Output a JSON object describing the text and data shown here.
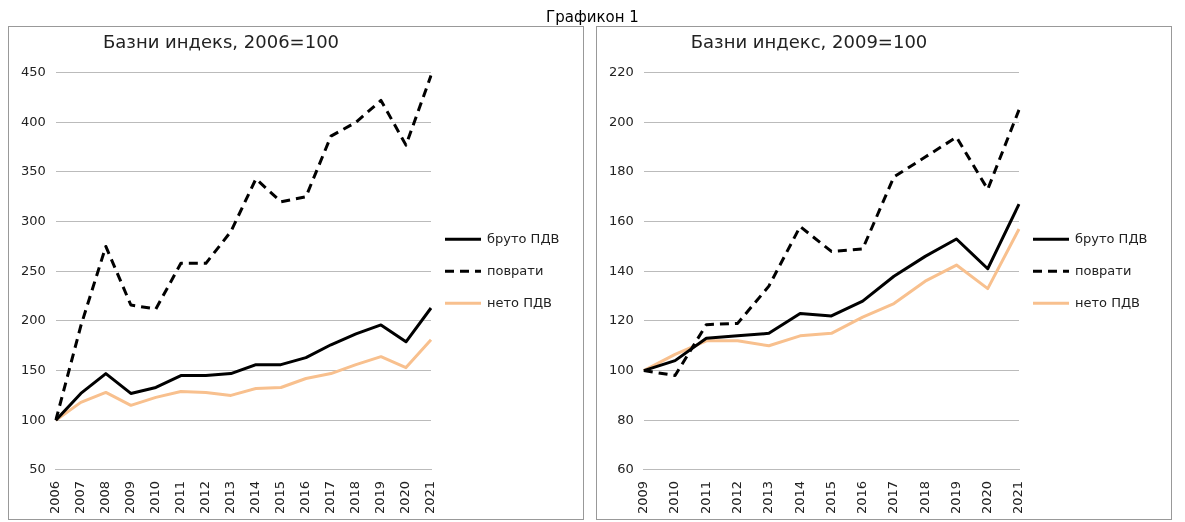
{
  "chart_data": [
    {
      "type": "line",
      "title": "Базни индекs, 2006=100",
      "annotations": [
        "Графикон 1"
      ],
      "categories": [
        "2006",
        "2007",
        "2008",
        "2009",
        "2010",
        "2011",
        "2012",
        "2013",
        "2014",
        "2015",
        "2016",
        "2017",
        "2018",
        "2019",
        "2020",
        "2021"
      ],
      "series": [
        {
          "name": "бруто ПДВ",
          "color": "#000000",
          "line_style": "solid",
          "values": [
            100,
            127,
            147,
            127,
            133,
            145,
            145,
            147,
            156,
            156,
            163,
            176,
            187,
            196,
            179,
            213
          ]
        },
        {
          "name": "поврати",
          "color": "#000000",
          "line_style": "dashed",
          "values": [
            100,
            195,
            275,
            216,
            212,
            258,
            258,
            290,
            343,
            320,
            325,
            386,
            400,
            422,
            377,
            447
          ]
        },
        {
          "name": "нето ПДВ",
          "color": "#f8c08e",
          "line_style": "solid",
          "values": [
            100,
            118,
            128,
            115,
            123,
            129,
            128,
            125,
            132,
            133,
            142,
            147,
            156,
            164,
            153,
            181
          ]
        }
      ],
      "ylim": [
        50,
        450
      ],
      "yticks": [
        50,
        100,
        150,
        200,
        250,
        300,
        350,
        400,
        450
      ],
      "grid": "y",
      "legend": "right"
    },
    {
      "type": "line",
      "title": "Базни индекс, 2009=100",
      "categories": [
        "2009",
        "2010",
        "2011",
        "2012",
        "2013",
        "2014",
        "2015",
        "2016",
        "2017",
        "2018",
        "2019",
        "2020",
        "2021"
      ],
      "series": [
        {
          "name": "бруто ПДВ",
          "color": "#000000",
          "line_style": "solid",
          "values": [
            100,
            104,
            113,
            114,
            115,
            123,
            122,
            128,
            138,
            146,
            153,
            141,
            167
          ]
        },
        {
          "name": "поврати",
          "color": "#000000",
          "line_style": "dashed",
          "values": [
            100,
            98,
            118.5,
            119,
            134,
            158,
            148,
            149,
            178,
            186,
            194,
            173,
            205
          ]
        },
        {
          "name": "нето ПДВ",
          "color": "#f8c08e",
          "line_style": "solid",
          "values": [
            100,
            106.5,
            112,
            112,
            110,
            114,
            115,
            121.5,
            127,
            136,
            142.5,
            133,
            157
          ]
        }
      ],
      "ylim": [
        60,
        220
      ],
      "yticks": [
        60,
        80,
        100,
        120,
        140,
        160,
        180,
        200,
        220
      ],
      "grid": "y",
      "legend": "right"
    }
  ]
}
